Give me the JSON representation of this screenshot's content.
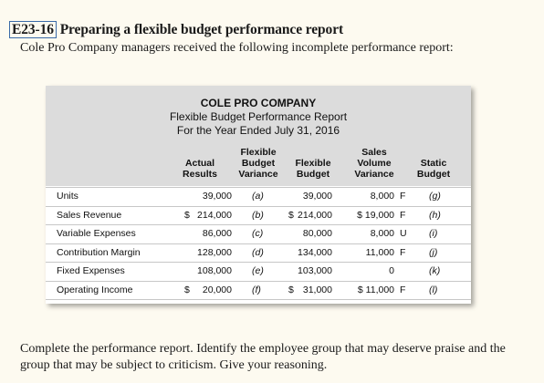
{
  "exercise": {
    "number": "E23-16",
    "title": "Preparing a flexible budget performance report",
    "intro": "Cole Pro Company managers received the following incomplete performance report:"
  },
  "report": {
    "company": "COLE PRO COMPANY",
    "subtitle": "Flexible Budget Performance Report",
    "period": "For the Year Ended July 31, 2016",
    "columns": [
      {
        "line1": "",
        "line2": "Actual",
        "line3": "Results"
      },
      {
        "line1": "Flexible",
        "line2": "Budget",
        "line3": "Variance"
      },
      {
        "line1": "",
        "line2": "Flexible",
        "line3": "Budget"
      },
      {
        "line1": "Sales",
        "line2": "Volume",
        "line3": "Variance"
      },
      {
        "line1": "",
        "line2": "Static",
        "line3": "Budget"
      }
    ],
    "rows": [
      {
        "label": "Units",
        "actual_sign": "",
        "actual": "39,000",
        "fbv": "(a)",
        "flex_sign": "",
        "flex": "39,000",
        "svv": "8,000",
        "svv_flag": "F",
        "static": "(g)"
      },
      {
        "label": "Sales Revenue",
        "actual_sign": "$",
        "actual": "214,000",
        "fbv": "(b)",
        "flex_sign": "$",
        "flex": "214,000",
        "svv": "$ 19,000",
        "svv_flag": "F",
        "static": "(h)"
      },
      {
        "label": "Variable Expenses",
        "actual_sign": "",
        "actual": "86,000",
        "fbv": "(c)",
        "flex_sign": "",
        "flex": "80,000",
        "svv": "8,000",
        "svv_flag": "U",
        "static": "(i)"
      },
      {
        "label": "Contribution Margin",
        "actual_sign": "",
        "actual": "128,000",
        "fbv": "(d)",
        "flex_sign": "",
        "flex": "134,000",
        "svv": "11,000",
        "svv_flag": "F",
        "static": "(j)"
      },
      {
        "label": "Fixed Expenses",
        "actual_sign": "",
        "actual": "108,000",
        "fbv": "(e)",
        "flex_sign": "",
        "flex": "103,000",
        "svv": "0",
        "svv_flag": "",
        "static": "(k)"
      },
      {
        "label": "Operating Income",
        "actual_sign": "$",
        "actual": "20,000",
        "fbv": "(f)",
        "flex_sign": "$",
        "flex": "31,000",
        "svv": "$ 11,000",
        "svv_flag": "F",
        "static": "(l)"
      }
    ]
  },
  "closing": "Complete the performance report. Identify the employee group that may deserve praise and the group that may be subject to criticism. Give your reasoning."
}
